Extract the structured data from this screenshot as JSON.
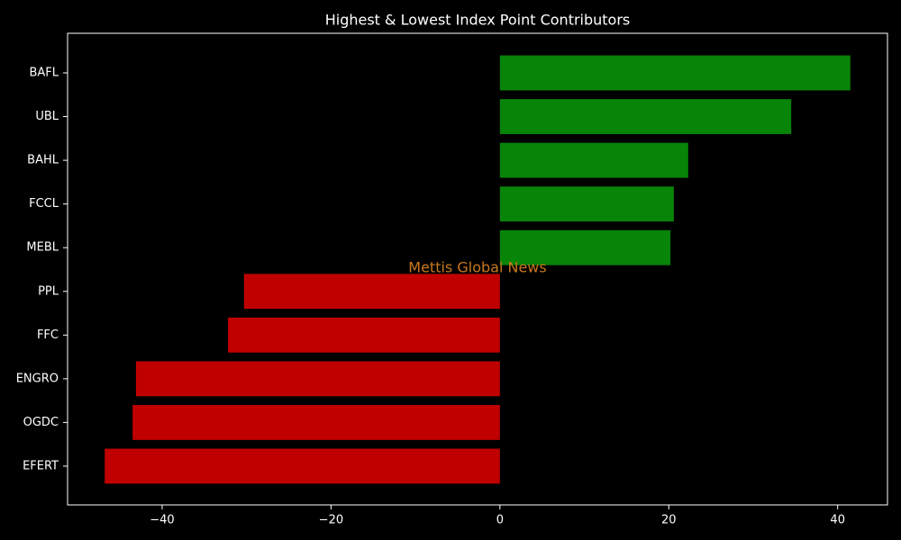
{
  "chart_data": {
    "type": "barh",
    "title": "Highest & Lowest Index Point Contributors",
    "annotation": "Mettis Global News",
    "categories": [
      "BAFL",
      "UBL",
      "BAHL",
      "FCCL",
      "MEBL",
      "PPL",
      "FFC",
      "ENGRO",
      "OGDC",
      "EFERT"
    ],
    "values": [
      41.5,
      34.5,
      22.3,
      20.6,
      20.2,
      -30.3,
      -32.2,
      -43.1,
      -43.5,
      -46.8
    ],
    "colors": [
      "#088408",
      "#088408",
      "#088408",
      "#088408",
      "#088408",
      "#c00000",
      "#c00000",
      "#c00000",
      "#c00000",
      "#c00000"
    ],
    "xlim": [
      -51.2,
      45.9
    ],
    "xticks": [
      {
        "value": -40,
        "label": "−40"
      },
      {
        "value": -20,
        "label": "−20"
      },
      0,
      20,
      40
    ],
    "grid": false
  }
}
